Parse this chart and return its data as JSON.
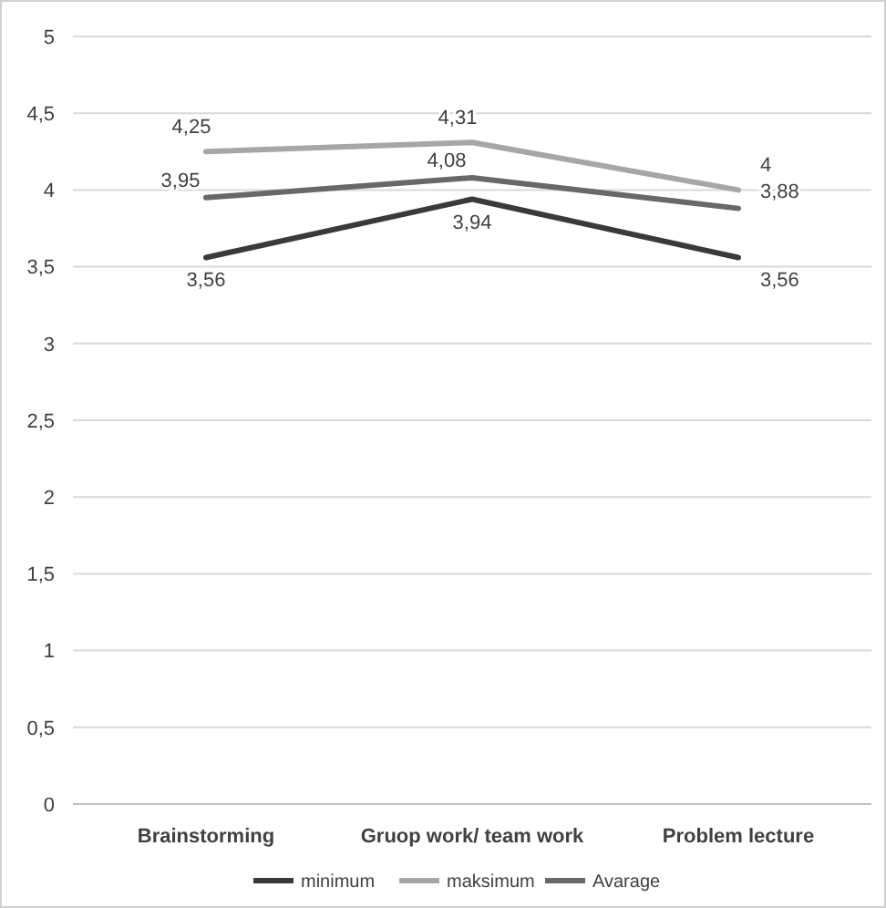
{
  "chart_data": {
    "type": "line",
    "categories": [
      "Brainstorming",
      "Gruop work/ team work",
      "Problem lecture"
    ],
    "series": [
      {
        "name": "minimum",
        "color": "#3a3a3a",
        "values": [
          3.56,
          3.94,
          3.56
        ],
        "value_labels": [
          "3,56",
          "3,94",
          "3,56"
        ]
      },
      {
        "name": "maksimum",
        "color": "#a6a6a6",
        "values": [
          4.25,
          4.31,
          4
        ],
        "value_labels": [
          "4,25",
          "4,31",
          "4"
        ]
      },
      {
        "name": "Avarage",
        "color": "#686868",
        "values": [
          3.95,
          4.08,
          3.88
        ],
        "value_labels": [
          "3,95",
          "4,08",
          "3,88"
        ]
      }
    ],
    "ylim": [
      0,
      5
    ],
    "yticks": [
      0,
      {
        "value": 0.5,
        "label": "0,5"
      },
      1,
      {
        "value": 1.5,
        "label": "1,5"
      },
      2,
      {
        "value": 2.5,
        "label": "2,5"
      },
      3,
      {
        "value": 3.5,
        "label": "3,5"
      },
      4,
      {
        "value": 4.5,
        "label": "4,5"
      },
      5
    ],
    "grid": "y",
    "legend": "bottom",
    "marker": "none",
    "line_style": "solid"
  }
}
